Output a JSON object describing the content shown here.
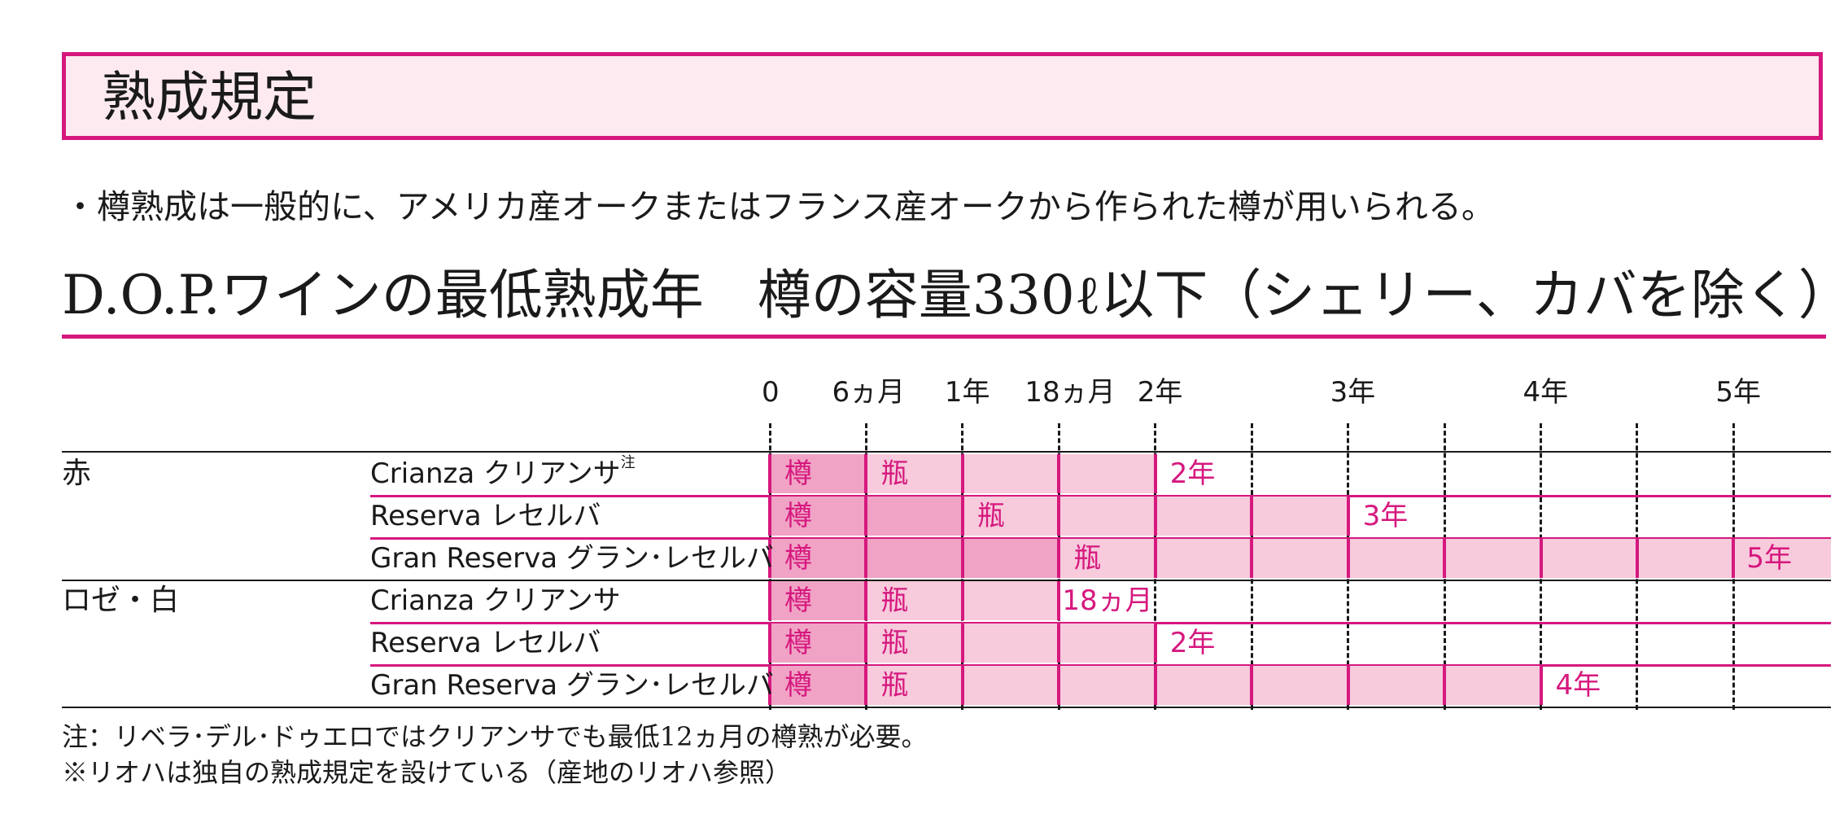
{
  "section_title": "熟成規定",
  "note_top": "・樽熟成は一般的に、アメリカ産オークまたはフランス産オークから作られた樽が用いられる。",
  "table_title": "D.O.P.ワインの最低熟成年　樽の容量330ℓ以下（シェリー、カバを除く）",
  "timeline_labels": [
    "0",
    "6ヵ月",
    "1年",
    "18ヵ月",
    "2年",
    "3年",
    "4年",
    "5年"
  ],
  "barrel_label": "樽",
  "bottle_label": "瓶",
  "colors": {
    "accent": "#d6187e",
    "barrel_fill": "#f0a3c5",
    "bottle_fill": "#f7cadc",
    "box_bg": "#fdeaf1"
  },
  "categories": [
    {
      "label": "赤"
    },
    {
      "label": "ロゼ・白"
    }
  ],
  "rows": [
    {
      "category": 0,
      "name": "Crianza クリアンサ",
      "note_mark": "注",
      "barrel_months": 6,
      "total_months": 24,
      "total_label": "2年"
    },
    {
      "category": 0,
      "name": "Reserva レセルバ",
      "note_mark": "",
      "barrel_months": 12,
      "total_months": 36,
      "total_label": "3年"
    },
    {
      "category": 0,
      "name": "Gran Reserva グラン･レセルバ",
      "note_mark": "",
      "barrel_months": 18,
      "total_months": 60,
      "total_label": "5年"
    },
    {
      "category": 1,
      "name": "Crianza クリアンサ",
      "note_mark": "",
      "barrel_months": 6,
      "total_months": 18,
      "total_label": "18ヵ月"
    },
    {
      "category": 1,
      "name": "Reserva レセルバ",
      "note_mark": "",
      "barrel_months": 6,
      "total_months": 24,
      "total_label": "2年"
    },
    {
      "category": 1,
      "name": "Gran Reserva グラン･レセルバ",
      "note_mark": "",
      "barrel_months": 6,
      "total_months": 48,
      "total_label": "4年"
    }
  ],
  "footnotes": [
    "注：リベラ･デル･ドゥエロではクリアンサでも最低12ヵ月の樽熟が必要。",
    "※リオハは独自の熟成規定を設けている（産地のリオハ参照）"
  ]
}
